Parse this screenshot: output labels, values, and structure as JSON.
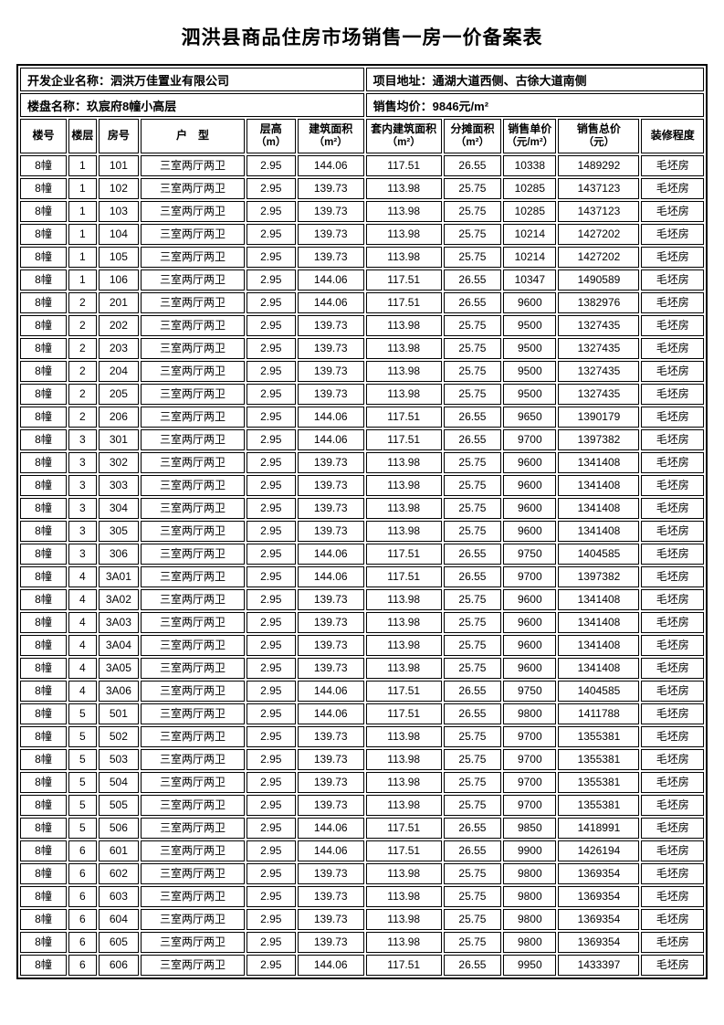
{
  "page": {
    "title": "泗洪县商品住房市场销售一房一价备案表"
  },
  "info": {
    "developer": "开发企业名称：泗洪万佳置业有限公司",
    "address": "项目地址：通湖大道西侧、古徐大道南侧",
    "project": "楼盘名称：玖宸府8幢小高层",
    "avg_price": "销售均价：9846元/m²"
  },
  "table": {
    "columns": [
      {
        "line1": "楼号",
        "line2": "",
        "key": "building"
      },
      {
        "line1": "楼层",
        "line2": "",
        "key": "floor"
      },
      {
        "line1": "房号",
        "line2": "",
        "key": "room"
      },
      {
        "line1": "户　型",
        "line2": "",
        "key": "layout"
      },
      {
        "line1": "层高",
        "line2": "（m）",
        "key": "story-height"
      },
      {
        "line1": "建筑面积",
        "line2": "（m²）",
        "key": "gross-area"
      },
      {
        "line1": "套内建筑面积",
        "line2": "（m²）",
        "key": "inner-area"
      },
      {
        "line1": "分摊面积",
        "line2": "（m²）",
        "key": "shared-area"
      },
      {
        "line1": "销售单价",
        "line2": "（元/m²）",
        "key": "unit-price"
      },
      {
        "line1": "销售总价",
        "line2": "（元）",
        "key": "total-price"
      },
      {
        "line1": "装修程度",
        "line2": "",
        "key": "decoration"
      }
    ],
    "col_widths_pct": [
      7.0,
      4.2,
      6.1,
      15.6,
      7.4,
      10.0,
      11.4,
      8.7,
      8.0,
      12.2,
      9.4
    ],
    "rows": [
      [
        "8幢",
        "1",
        "101",
        "三室两厅两卫",
        "2.95",
        "144.06",
        "117.51",
        "26.55",
        "10338",
        "1489292",
        "毛坯房"
      ],
      [
        "8幢",
        "1",
        "102",
        "三室两厅两卫",
        "2.95",
        "139.73",
        "113.98",
        "25.75",
        "10285",
        "1437123",
        "毛坯房"
      ],
      [
        "8幢",
        "1",
        "103",
        "三室两厅两卫",
        "2.95",
        "139.73",
        "113.98",
        "25.75",
        "10285",
        "1437123",
        "毛坯房"
      ],
      [
        "8幢",
        "1",
        "104",
        "三室两厅两卫",
        "2.95",
        "139.73",
        "113.98",
        "25.75",
        "10214",
        "1427202",
        "毛坯房"
      ],
      [
        "8幢",
        "1",
        "105",
        "三室两厅两卫",
        "2.95",
        "139.73",
        "113.98",
        "25.75",
        "10214",
        "1427202",
        "毛坯房"
      ],
      [
        "8幢",
        "1",
        "106",
        "三室两厅两卫",
        "2.95",
        "144.06",
        "117.51",
        "26.55",
        "10347",
        "1490589",
        "毛坯房"
      ],
      [
        "8幢",
        "2",
        "201",
        "三室两厅两卫",
        "2.95",
        "144.06",
        "117.51",
        "26.55",
        "9600",
        "1382976",
        "毛坯房"
      ],
      [
        "8幢",
        "2",
        "202",
        "三室两厅两卫",
        "2.95",
        "139.73",
        "113.98",
        "25.75",
        "9500",
        "1327435",
        "毛坯房"
      ],
      [
        "8幢",
        "2",
        "203",
        "三室两厅两卫",
        "2.95",
        "139.73",
        "113.98",
        "25.75",
        "9500",
        "1327435",
        "毛坯房"
      ],
      [
        "8幢",
        "2",
        "204",
        "三室两厅两卫",
        "2.95",
        "139.73",
        "113.98",
        "25.75",
        "9500",
        "1327435",
        "毛坯房"
      ],
      [
        "8幢",
        "2",
        "205",
        "三室两厅两卫",
        "2.95",
        "139.73",
        "113.98",
        "25.75",
        "9500",
        "1327435",
        "毛坯房"
      ],
      [
        "8幢",
        "2",
        "206",
        "三室两厅两卫",
        "2.95",
        "144.06",
        "117.51",
        "26.55",
        "9650",
        "1390179",
        "毛坯房"
      ],
      [
        "8幢",
        "3",
        "301",
        "三室两厅两卫",
        "2.95",
        "144.06",
        "117.51",
        "26.55",
        "9700",
        "1397382",
        "毛坯房"
      ],
      [
        "8幢",
        "3",
        "302",
        "三室两厅两卫",
        "2.95",
        "139.73",
        "113.98",
        "25.75",
        "9600",
        "1341408",
        "毛坯房"
      ],
      [
        "8幢",
        "3",
        "303",
        "三室两厅两卫",
        "2.95",
        "139.73",
        "113.98",
        "25.75",
        "9600",
        "1341408",
        "毛坯房"
      ],
      [
        "8幢",
        "3",
        "304",
        "三室两厅两卫",
        "2.95",
        "139.73",
        "113.98",
        "25.75",
        "9600",
        "1341408",
        "毛坯房"
      ],
      [
        "8幢",
        "3",
        "305",
        "三室两厅两卫",
        "2.95",
        "139.73",
        "113.98",
        "25.75",
        "9600",
        "1341408",
        "毛坯房"
      ],
      [
        "8幢",
        "3",
        "306",
        "三室两厅两卫",
        "2.95",
        "144.06",
        "117.51",
        "26.55",
        "9750",
        "1404585",
        "毛坯房"
      ],
      [
        "8幢",
        "4",
        "3A01",
        "三室两厅两卫",
        "2.95",
        "144.06",
        "117.51",
        "26.55",
        "9700",
        "1397382",
        "毛坯房"
      ],
      [
        "8幢",
        "4",
        "3A02",
        "三室两厅两卫",
        "2.95",
        "139.73",
        "113.98",
        "25.75",
        "9600",
        "1341408",
        "毛坯房"
      ],
      [
        "8幢",
        "4",
        "3A03",
        "三室两厅两卫",
        "2.95",
        "139.73",
        "113.98",
        "25.75",
        "9600",
        "1341408",
        "毛坯房"
      ],
      [
        "8幢",
        "4",
        "3A04",
        "三室两厅两卫",
        "2.95",
        "139.73",
        "113.98",
        "25.75",
        "9600",
        "1341408",
        "毛坯房"
      ],
      [
        "8幢",
        "4",
        "3A05",
        "三室两厅两卫",
        "2.95",
        "139.73",
        "113.98",
        "25.75",
        "9600",
        "1341408",
        "毛坯房"
      ],
      [
        "8幢",
        "4",
        "3A06",
        "三室两厅两卫",
        "2.95",
        "144.06",
        "117.51",
        "26.55",
        "9750",
        "1404585",
        "毛坯房"
      ],
      [
        "8幢",
        "5",
        "501",
        "三室两厅两卫",
        "2.95",
        "144.06",
        "117.51",
        "26.55",
        "9800",
        "1411788",
        "毛坯房"
      ],
      [
        "8幢",
        "5",
        "502",
        "三室两厅两卫",
        "2.95",
        "139.73",
        "113.98",
        "25.75",
        "9700",
        "1355381",
        "毛坯房"
      ],
      [
        "8幢",
        "5",
        "503",
        "三室两厅两卫",
        "2.95",
        "139.73",
        "113.98",
        "25.75",
        "9700",
        "1355381",
        "毛坯房"
      ],
      [
        "8幢",
        "5",
        "504",
        "三室两厅两卫",
        "2.95",
        "139.73",
        "113.98",
        "25.75",
        "9700",
        "1355381",
        "毛坯房"
      ],
      [
        "8幢",
        "5",
        "505",
        "三室两厅两卫",
        "2.95",
        "139.73",
        "113.98",
        "25.75",
        "9700",
        "1355381",
        "毛坯房"
      ],
      [
        "8幢",
        "5",
        "506",
        "三室两厅两卫",
        "2.95",
        "144.06",
        "117.51",
        "26.55",
        "9850",
        "1418991",
        "毛坯房"
      ],
      [
        "8幢",
        "6",
        "601",
        "三室两厅两卫",
        "2.95",
        "144.06",
        "117.51",
        "26.55",
        "9900",
        "1426194",
        "毛坯房"
      ],
      [
        "8幢",
        "6",
        "602",
        "三室两厅两卫",
        "2.95",
        "139.73",
        "113.98",
        "25.75",
        "9800",
        "1369354",
        "毛坯房"
      ],
      [
        "8幢",
        "6",
        "603",
        "三室两厅两卫",
        "2.95",
        "139.73",
        "113.98",
        "25.75",
        "9800",
        "1369354",
        "毛坯房"
      ],
      [
        "8幢",
        "6",
        "604",
        "三室两厅两卫",
        "2.95",
        "139.73",
        "113.98",
        "25.75",
        "9800",
        "1369354",
        "毛坯房"
      ],
      [
        "8幢",
        "6",
        "605",
        "三室两厅两卫",
        "2.95",
        "139.73",
        "113.98",
        "25.75",
        "9800",
        "1369354",
        "毛坯房"
      ],
      [
        "8幢",
        "6",
        "606",
        "三室两厅两卫",
        "2.95",
        "144.06",
        "117.51",
        "26.55",
        "9950",
        "1433397",
        "毛坯房"
      ]
    ]
  }
}
